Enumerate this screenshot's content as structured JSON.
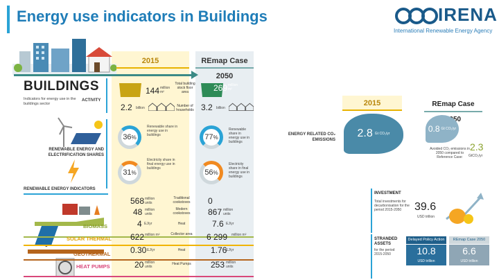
{
  "header": {
    "title": "Energy use indicators in Buildings"
  },
  "logo": {
    "name": "IRENA",
    "subtitle": "International Renewable Energy Agency"
  },
  "columns": {
    "y2015": "2015",
    "remap": "REmap Case 2050"
  },
  "sector": {
    "title": "BUILDINGS",
    "subtitle": "Indicators for energy use in the buildings sector",
    "activity": "ACTIVITY"
  },
  "activity": {
    "floor_2015": "144",
    "floor_unit": "million m²",
    "floor_label": "Total building stock floor area",
    "floor_2050": "269",
    "floor_2050_unit": "million m²",
    "house_2015": "2.2",
    "house_unit": "billion",
    "house_label": "Number of households",
    "house_2050": "3.2",
    "house_2050_unit": "billion"
  },
  "shares": {
    "label": "RENEWABLE ENERGY AND ELECTRIFICATION SHARES",
    "re_2015": "36",
    "re_2050": "77",
    "re_label_2015": "Renewable share in energy use in buildings",
    "re_label_2050": "Renewable share in energy use in buildings",
    "el_2015": "31",
    "el_2050": "56",
    "el_label_2015": "Electricity share in final energy use in buildings",
    "el_label_2050": "Electricity share in final energy use in buildings"
  },
  "indicators": {
    "label": "RENEWABLE ENERGY INDICATORS",
    "biomass": "BIOMASS",
    "solar": "SOLAR THERMAL",
    "geo": "GEOTHERMAL",
    "hp": "HEAT PUMPS",
    "rows": [
      {
        "v15": "568",
        "u15": "million units",
        "mid": "Traditional cookstoves",
        "v50": "0",
        "u50": ""
      },
      {
        "v15": "48",
        "u15": "million units",
        "mid": "Modern cookstoves",
        "v50": "867",
        "u50": "million units"
      },
      {
        "v15": "4",
        "u15": "EJ/yr",
        "mid": "Heat",
        "v50": "7.6",
        "u50": "EJ/yr"
      },
      {
        "v15": "622",
        "u15": "million m²",
        "mid": "Collector area",
        "v50": "6 299",
        "u50": "million m²"
      },
      {
        "v15": "0.30",
        "u15": "EJ/yr",
        "mid": "Heat",
        "v50": "1.76",
        "u50": "EJ/yr"
      },
      {
        "v15": "20",
        "u15": "million units",
        "mid": "Heat Pumps",
        "v50": "253",
        "u50": "million units"
      }
    ]
  },
  "emissions": {
    "label": "ENERGY RELATED CO₂ EMISSIONS",
    "v2015": "2.8",
    "unit2015": "Gt CO₂/yr",
    "v2050": "0.8",
    "unit2050": "Gt CO₂/yr",
    "avoided_label": "Avoided CO₂ emissions in 2050 compared to Reference Case:",
    "avoided": "2.3",
    "avoided_unit": "GtCO₂/yr"
  },
  "investment": {
    "title": "INVESTMENT",
    "desc": "Total investments for decarbonisation for the period 2015-2050",
    "value": "39.6",
    "unit": "USD trillion"
  },
  "stranded": {
    "title": "STRANDED ASSETS",
    "period": "for the period 2015-2050",
    "delayed_label": "Delayed Policy Action",
    "delayed_value": "10.8",
    "delayed_unit": "USD trillion",
    "remap_label": "REmap Case 2050",
    "remap_value": "6.6",
    "remap_unit": "USD trillion"
  },
  "colors": {
    "title": "#1f7db8",
    "gold": "#e8b200",
    "teal": "#3a8a86",
    "accent": "#2aa3d6",
    "orange": "#f18a21"
  }
}
